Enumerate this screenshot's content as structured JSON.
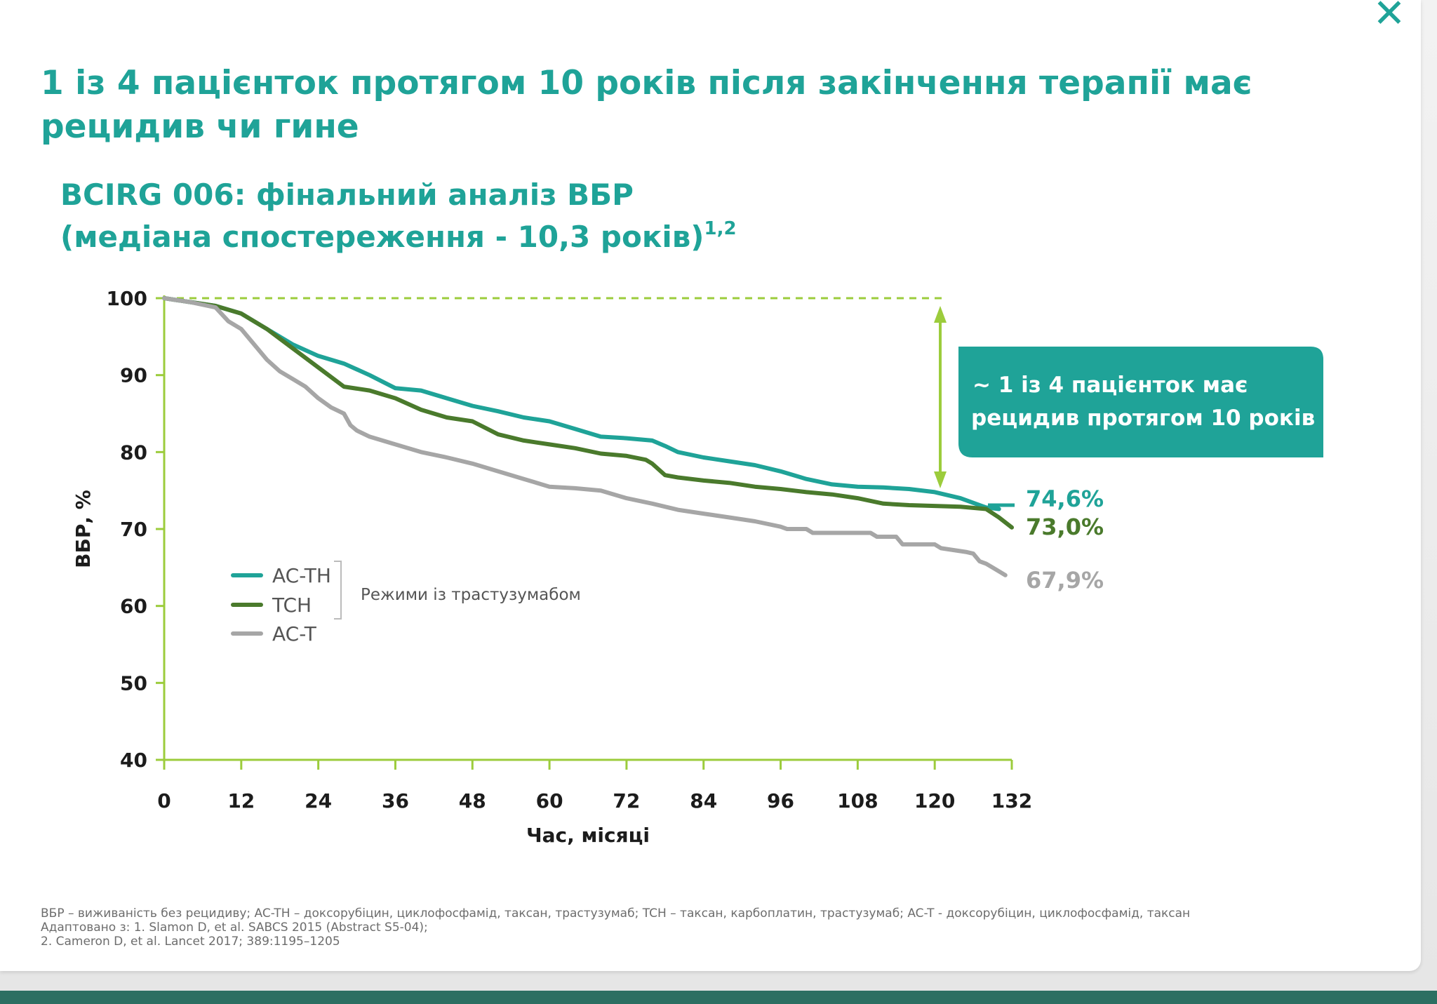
{
  "title": "1 із 4 пацієнток протягом 10 років після закінчення терапії має рецидив чи гине",
  "subtitle_line1": "BCIRG 006: фінальний аналіз ВБР",
  "subtitle_line2": "(медіана спостереження - 10,3 років)",
  "subtitle_sup": "1,2",
  "close_label": "✕",
  "callout_line1": "~ 1 із 4 пацієнток має",
  "callout_line2": "рецидив протягом 10 років",
  "bracket_label": "Режими із трастузумабом",
  "colors": {
    "teal": "#1fa398",
    "dark_green": "#4a7a2c",
    "grey": "#a6a6a6",
    "axis": "#9ccc3c",
    "text": "#1c1c1c"
  },
  "chart_data": {
    "type": "line",
    "xlabel": "Час, місяці",
    "ylabel": "ВБР, %",
    "xlim": [
      0,
      132
    ],
    "ylim": [
      40,
      100
    ],
    "x_ticks": [
      0,
      12,
      24,
      36,
      48,
      60,
      72,
      84,
      96,
      108,
      120,
      132
    ],
    "y_ticks": [
      40,
      50,
      60,
      70,
      80,
      90,
      100
    ],
    "legend_position": "lower-left",
    "series": [
      {
        "name": "AC-TH",
        "color": "#1fa398",
        "end_label": "74,6%",
        "points": [
          [
            0,
            100
          ],
          [
            4,
            99.5
          ],
          [
            8,
            99
          ],
          [
            12,
            98
          ],
          [
            16,
            96
          ],
          [
            20,
            94
          ],
          [
            24,
            92.5
          ],
          [
            28,
            91.5
          ],
          [
            32,
            90
          ],
          [
            36,
            88.3
          ],
          [
            40,
            88
          ],
          [
            44,
            87
          ],
          [
            48,
            86
          ],
          [
            52,
            85.3
          ],
          [
            56,
            84.5
          ],
          [
            60,
            84
          ],
          [
            64,
            83
          ],
          [
            68,
            82
          ],
          [
            72,
            81.8
          ],
          [
            76,
            81.5
          ],
          [
            78,
            80.8
          ],
          [
            80,
            80
          ],
          [
            84,
            79.3
          ],
          [
            88,
            78.8
          ],
          [
            92,
            78.3
          ],
          [
            96,
            77.5
          ],
          [
            100,
            76.5
          ],
          [
            104,
            75.8
          ],
          [
            108,
            75.5
          ],
          [
            112,
            75.4
          ],
          [
            116,
            75.2
          ],
          [
            120,
            74.8
          ],
          [
            124,
            74
          ],
          [
            128,
            72.8
          ],
          [
            130,
            72.6
          ]
        ]
      },
      {
        "name": "TCH",
        "color": "#4a7a2c",
        "end_label": "73,0%",
        "points": [
          [
            0,
            100
          ],
          [
            4,
            99.5
          ],
          [
            8,
            99
          ],
          [
            12,
            98
          ],
          [
            16,
            96
          ],
          [
            20,
            93.5
          ],
          [
            24,
            91
          ],
          [
            28,
            88.5
          ],
          [
            32,
            88
          ],
          [
            36,
            87
          ],
          [
            40,
            85.5
          ],
          [
            44,
            84.5
          ],
          [
            48,
            84
          ],
          [
            52,
            82.3
          ],
          [
            56,
            81.5
          ],
          [
            60,
            81
          ],
          [
            64,
            80.5
          ],
          [
            68,
            79.8
          ],
          [
            72,
            79.5
          ],
          [
            75,
            79
          ],
          [
            76,
            78.5
          ],
          [
            78,
            77
          ],
          [
            80,
            76.7
          ],
          [
            84,
            76.3
          ],
          [
            88,
            76
          ],
          [
            92,
            75.5
          ],
          [
            96,
            75.2
          ],
          [
            100,
            74.8
          ],
          [
            104,
            74.5
          ],
          [
            108,
            74
          ],
          [
            112,
            73.3
          ],
          [
            116,
            73.1
          ],
          [
            120,
            73
          ],
          [
            124,
            72.9
          ],
          [
            128,
            72.6
          ],
          [
            130,
            71.5
          ],
          [
            132,
            70.2
          ]
        ]
      },
      {
        "name": "AC-T",
        "color": "#a6a6a6",
        "end_label": "67,9%",
        "points": [
          [
            0,
            100
          ],
          [
            4,
            99.5
          ],
          [
            8,
            98.8
          ],
          [
            10,
            97
          ],
          [
            12,
            96
          ],
          [
            14,
            94
          ],
          [
            16,
            92
          ],
          [
            18,
            90.5
          ],
          [
            20,
            89.5
          ],
          [
            22,
            88.5
          ],
          [
            24,
            87
          ],
          [
            26,
            85.8
          ],
          [
            28,
            85
          ],
          [
            29,
            83.5
          ],
          [
            30,
            82.8
          ],
          [
            32,
            82
          ],
          [
            36,
            81
          ],
          [
            40,
            80
          ],
          [
            44,
            79.3
          ],
          [
            48,
            78.5
          ],
          [
            52,
            77.5
          ],
          [
            56,
            76.5
          ],
          [
            60,
            75.5
          ],
          [
            64,
            75.3
          ],
          [
            68,
            75
          ],
          [
            72,
            74
          ],
          [
            76,
            73.3
          ],
          [
            80,
            72.5
          ],
          [
            84,
            72
          ],
          [
            88,
            71.5
          ],
          [
            92,
            71
          ],
          [
            96,
            70.3
          ],
          [
            97,
            70
          ],
          [
            100,
            70
          ],
          [
            101,
            69.5
          ],
          [
            104,
            69.5
          ],
          [
            108,
            69.5
          ],
          [
            110,
            69.5
          ],
          [
            111,
            69
          ],
          [
            114,
            69
          ],
          [
            115,
            68
          ],
          [
            120,
            68
          ],
          [
            121,
            67.5
          ],
          [
            125,
            67
          ],
          [
            126,
            66.8
          ],
          [
            127,
            65.8
          ],
          [
            128,
            65.5
          ],
          [
            129,
            65
          ],
          [
            130,
            64.5
          ],
          [
            131,
            64
          ]
        ]
      }
    ]
  },
  "footnotes": [
    "ВБР – виживаність без рецидиву; AC-TH – доксорубіцин, циклофосфамід, таксан, трастузумаб; TCH – таксан, карбоплатин, трастузумаб; AC-T - доксорубіцин, циклофосфамід, таксан",
    "Адаптовано з: 1. Slamon D, et al. SABCS 2015 (Abstract S5-04);",
    "2. Cameron D, et al. Lancet 2017; 389:1195–1205"
  ]
}
